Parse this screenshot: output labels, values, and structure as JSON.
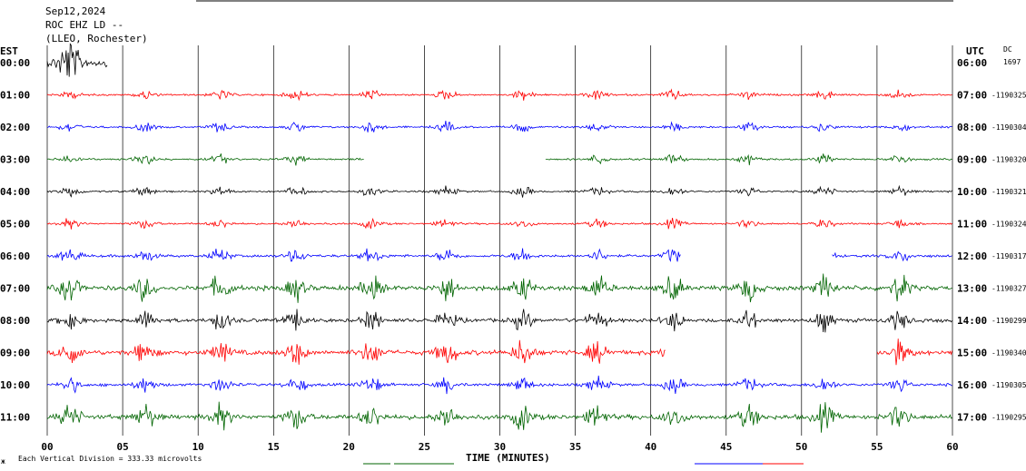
{
  "header": {
    "date": "Sep12,2024",
    "station": "ROC EHZ LD --",
    "location": "(LLEO, Rochester)"
  },
  "left_axis_title": "EST",
  "right_axis_title": "UTC",
  "dc_label": "DC",
  "x_axis_title": "TIME (MINUTES)",
  "footer_note": "Each Vertical Division =  333.33 microvolts",
  "footer_mark": "ж",
  "colors": {
    "red": "#ff0000",
    "blue": "#0000ff",
    "green": "#006400",
    "black": "#000000",
    "grid": "#000000"
  },
  "chart_data": {
    "type": "line",
    "x_ticks": [
      "00",
      "05",
      "10",
      "15",
      "20",
      "25",
      "30",
      "35",
      "40",
      "45",
      "50",
      "55",
      "60"
    ],
    "xlim": [
      0,
      60
    ],
    "rows": [
      {
        "est": "00:00",
        "utc": "06:00",
        "dc": "1697",
        "color": "black",
        "start": 0,
        "end": 4,
        "amp": 1.6
      },
      {
        "est": "01:00",
        "utc": "07:00",
        "dc": "-1190325",
        "color": "red",
        "start": 0,
        "end": 60,
        "amp": 0.35
      },
      {
        "est": "02:00",
        "utc": "08:00",
        "dc": "-1190304",
        "color": "blue",
        "start": 0,
        "end": 60,
        "amp": 0.35
      },
      {
        "est": "03:00",
        "utc": "09:00",
        "dc": "-1190320",
        "color": "green",
        "start": 0,
        "end": 60,
        "amp": 0.35,
        "gap": [
          21,
          33
        ]
      },
      {
        "est": "04:00",
        "utc": "10:00",
        "dc": "-1190321",
        "color": "black",
        "start": 0,
        "end": 60,
        "amp": 0.35
      },
      {
        "est": "05:00",
        "utc": "11:00",
        "dc": "-1190324",
        "color": "red",
        "start": 0,
        "end": 60,
        "amp": 0.35
      },
      {
        "est": "06:00",
        "utc": "12:00",
        "dc": "-1190317",
        "color": "blue",
        "start": 0,
        "end": 60,
        "amp": 0.5,
        "gap": [
          42,
          52
        ]
      },
      {
        "est": "07:00",
        "utc": "13:00",
        "dc": "-1190327",
        "color": "green",
        "start": 0,
        "end": 60,
        "amp": 0.9
      },
      {
        "est": "08:00",
        "utc": "14:00",
        "dc": "-1190299",
        "color": "black",
        "start": 0,
        "end": 60,
        "amp": 0.7
      },
      {
        "est": "09:00",
        "utc": "15:00",
        "dc": "-1190340",
        "color": "red",
        "start": 0,
        "end": 60,
        "amp": 0.9,
        "gap": [
          41,
          55
        ]
      },
      {
        "est": "10:00",
        "utc": "16:00",
        "dc": "-1190305",
        "color": "blue",
        "start": 0,
        "end": 60,
        "amp": 0.55
      },
      {
        "est": "11:00",
        "utc": "17:00",
        "dc": "-1190295",
        "color": "green",
        "start": 0,
        "end": 60,
        "amp": 0.9
      }
    ]
  }
}
